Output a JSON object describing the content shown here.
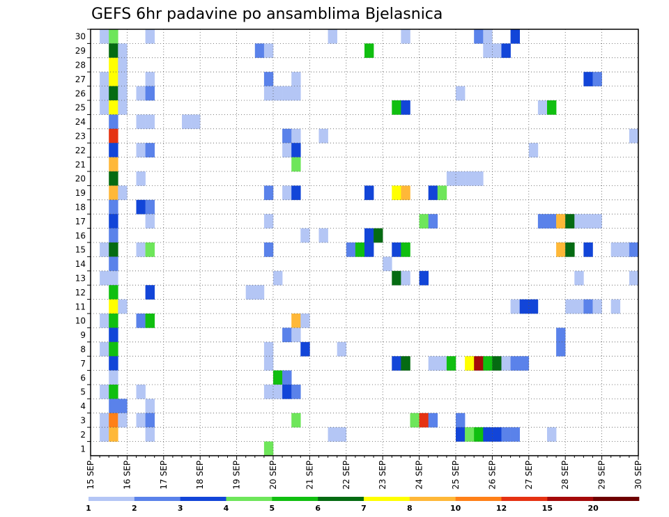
{
  "chart_data": {
    "type": "heatmap",
    "title": "GEFS 6hr padavine po ansamblima Bjelasnica",
    "x_ticks": [
      "15 SEP",
      "16 SEP",
      "17 SEP",
      "18 SEP",
      "19 SEP",
      "20 SEP",
      "21 SEP",
      "22 SEP",
      "23 SEP",
      "24 SEP",
      "25 SEP",
      "26 SEP",
      "27 SEP",
      "28 SEP",
      "29 SEP",
      "30 SEP"
    ],
    "y_ticks": [
      "1",
      "2",
      "3",
      "4",
      "5",
      "6",
      "7",
      "8",
      "9",
      "10",
      "11",
      "12",
      "13",
      "14",
      "15",
      "16",
      "17",
      "18",
      "19",
      "20",
      "21",
      "22",
      "23",
      "24",
      "25",
      "26",
      "27",
      "28",
      "29",
      "30"
    ],
    "xlim": [
      0,
      60
    ],
    "ylim": [
      0,
      30
    ],
    "x_step": "6hr",
    "grid": true,
    "legend": {
      "labels": [
        "1",
        "2",
        "3",
        "4",
        "5",
        "6",
        "7",
        "8",
        "10",
        "12",
        "15",
        "20"
      ],
      "colors": [
        "#b4c6f5",
        "#5a82ea",
        "#1245d8",
        "#6ee65a",
        "#10bf10",
        "#056b12",
        "#ffff00",
        "#ffb838",
        "#ff8018",
        "#e53212",
        "#a50a0a",
        "#6e0000"
      ],
      "placement": "bottom"
    },
    "cells": [
      [
        1,
        30,
        0
      ],
      [
        2,
        30,
        3
      ],
      [
        6,
        30,
        0
      ],
      [
        26,
        30,
        0
      ],
      [
        34,
        30,
        0
      ],
      [
        42,
        30,
        1
      ],
      [
        43,
        30,
        0
      ],
      [
        46,
        30,
        2
      ],
      [
        2,
        29,
        5
      ],
      [
        3,
        29,
        0
      ],
      [
        18,
        29,
        1
      ],
      [
        19,
        29,
        0
      ],
      [
        30,
        29,
        4
      ],
      [
        43,
        29,
        0
      ],
      [
        44,
        29,
        0
      ],
      [
        45,
        29,
        2
      ],
      [
        2,
        28,
        6
      ],
      [
        3,
        28,
        0
      ],
      [
        1,
        27,
        0
      ],
      [
        2,
        27,
        6
      ],
      [
        3,
        27,
        0
      ],
      [
        6,
        27,
        0
      ],
      [
        19,
        27,
        1
      ],
      [
        22,
        27,
        0
      ],
      [
        54,
        27,
        2
      ],
      [
        55,
        27,
        1
      ],
      [
        1,
        26,
        0
      ],
      [
        2,
        26,
        5
      ],
      [
        3,
        26,
        0
      ],
      [
        5,
        26,
        0
      ],
      [
        6,
        26,
        1
      ],
      [
        19,
        26,
        0
      ],
      [
        20,
        26,
        0
      ],
      [
        21,
        26,
        0
      ],
      [
        22,
        26,
        0
      ],
      [
        40,
        26,
        0
      ],
      [
        1,
        25,
        0
      ],
      [
        2,
        25,
        6
      ],
      [
        3,
        25,
        0
      ],
      [
        33,
        25,
        4
      ],
      [
        34,
        25,
        2
      ],
      [
        49,
        25,
        0
      ],
      [
        50,
        25,
        4
      ],
      [
        2,
        24,
        1
      ],
      [
        5,
        24,
        0
      ],
      [
        6,
        24,
        0
      ],
      [
        10,
        24,
        0
      ],
      [
        11,
        24,
        0
      ],
      [
        2,
        23,
        9
      ],
      [
        21,
        23,
        1
      ],
      [
        22,
        23,
        0
      ],
      [
        25,
        23,
        0
      ],
      [
        59,
        23,
        0
      ],
      [
        2,
        22,
        2
      ],
      [
        5,
        22,
        0
      ],
      [
        6,
        22,
        1
      ],
      [
        21,
        22,
        0
      ],
      [
        22,
        22,
        2
      ],
      [
        48,
        22,
        0
      ],
      [
        2,
        21,
        7
      ],
      [
        22,
        21,
        3
      ],
      [
        2,
        20,
        5
      ],
      [
        5,
        20,
        0
      ],
      [
        39,
        20,
        0
      ],
      [
        40,
        20,
        0
      ],
      [
        41,
        20,
        0
      ],
      [
        42,
        20,
        0
      ],
      [
        2,
        19,
        7
      ],
      [
        3,
        19,
        0
      ],
      [
        19,
        19,
        1
      ],
      [
        21,
        19,
        0
      ],
      [
        22,
        19,
        2
      ],
      [
        30,
        19,
        2
      ],
      [
        33,
        19,
        6
      ],
      [
        34,
        19,
        7
      ],
      [
        37,
        19,
        2
      ],
      [
        38,
        19,
        3
      ],
      [
        2,
        18,
        1
      ],
      [
        5,
        18,
        2
      ],
      [
        6,
        18,
        1
      ],
      [
        2,
        17,
        2
      ],
      [
        6,
        17,
        0
      ],
      [
        19,
        17,
        0
      ],
      [
        36,
        17,
        3
      ],
      [
        37,
        17,
        1
      ],
      [
        49,
        17,
        1
      ],
      [
        50,
        17,
        1
      ],
      [
        51,
        17,
        7
      ],
      [
        52,
        17,
        5
      ],
      [
        53,
        17,
        0
      ],
      [
        54,
        17,
        0
      ],
      [
        55,
        17,
        0
      ],
      [
        2,
        16,
        1
      ],
      [
        23,
        16,
        0
      ],
      [
        25,
        16,
        0
      ],
      [
        30,
        16,
        2
      ],
      [
        31,
        16,
        5
      ],
      [
        1,
        15,
        0
      ],
      [
        2,
        15,
        5
      ],
      [
        5,
        15,
        0
      ],
      [
        6,
        15,
        3
      ],
      [
        19,
        15,
        1
      ],
      [
        28,
        15,
        1
      ],
      [
        29,
        15,
        4
      ],
      [
        30,
        15,
        2
      ],
      [
        33,
        15,
        2
      ],
      [
        34,
        15,
        4
      ],
      [
        51,
        15,
        7
      ],
      [
        52,
        15,
        5
      ],
      [
        54,
        15,
        2
      ],
      [
        57,
        15,
        0
      ],
      [
        58,
        15,
        0
      ],
      [
        59,
        15,
        1
      ],
      [
        2,
        14,
        1
      ],
      [
        32,
        14,
        0
      ],
      [
        1,
        13,
        0
      ],
      [
        2,
        13,
        0
      ],
      [
        20,
        13,
        0
      ],
      [
        33,
        13,
        5
      ],
      [
        34,
        13,
        0
      ],
      [
        36,
        13,
        2
      ],
      [
        53,
        13,
        0
      ],
      [
        59,
        13,
        0
      ],
      [
        2,
        12,
        4
      ],
      [
        6,
        12,
        2
      ],
      [
        17,
        12,
        0
      ],
      [
        18,
        12,
        0
      ],
      [
        2,
        11,
        6
      ],
      [
        3,
        11,
        0
      ],
      [
        46,
        11,
        0
      ],
      [
        47,
        11,
        2
      ],
      [
        48,
        11,
        2
      ],
      [
        52,
        11,
        0
      ],
      [
        53,
        11,
        0
      ],
      [
        54,
        11,
        1
      ],
      [
        55,
        11,
        0
      ],
      [
        57,
        11,
        0
      ],
      [
        1,
        10,
        0
      ],
      [
        2,
        10,
        4
      ],
      [
        5,
        10,
        1
      ],
      [
        6,
        10,
        4
      ],
      [
        22,
        10,
        7
      ],
      [
        23,
        10,
        0
      ],
      [
        2,
        9,
        2
      ],
      [
        21,
        9,
        1
      ],
      [
        22,
        9,
        0
      ],
      [
        51,
        9,
        1
      ],
      [
        1,
        8,
        0
      ],
      [
        2,
        8,
        4
      ],
      [
        19,
        8,
        0
      ],
      [
        23,
        8,
        2
      ],
      [
        27,
        8,
        0
      ],
      [
        51,
        8,
        1
      ],
      [
        2,
        7,
        2
      ],
      [
        19,
        7,
        0
      ],
      [
        33,
        7,
        2
      ],
      [
        34,
        7,
        5
      ],
      [
        37,
        7,
        0
      ],
      [
        38,
        7,
        0
      ],
      [
        39,
        7,
        4
      ],
      [
        41,
        7,
        6
      ],
      [
        42,
        7,
        10
      ],
      [
        43,
        7,
        4
      ],
      [
        44,
        7,
        5
      ],
      [
        45,
        7,
        0
      ],
      [
        46,
        7,
        1
      ],
      [
        47,
        7,
        1
      ],
      [
        2,
        6,
        0
      ],
      [
        20,
        6,
        4
      ],
      [
        21,
        6,
        1
      ],
      [
        1,
        5,
        0
      ],
      [
        2,
        5,
        4
      ],
      [
        5,
        5,
        0
      ],
      [
        19,
        5,
        0
      ],
      [
        20,
        5,
        0
      ],
      [
        21,
        5,
        2
      ],
      [
        22,
        5,
        1
      ],
      [
        2,
        4,
        1
      ],
      [
        3,
        4,
        1
      ],
      [
        6,
        4,
        0
      ],
      [
        1,
        3,
        0
      ],
      [
        2,
        3,
        8
      ],
      [
        3,
        3,
        0
      ],
      [
        5,
        3,
        0
      ],
      [
        6,
        3,
        1
      ],
      [
        22,
        3,
        3
      ],
      [
        35,
        3,
        3
      ],
      [
        36,
        3,
        9
      ],
      [
        37,
        3,
        1
      ],
      [
        40,
        3,
        1
      ],
      [
        1,
        2,
        0
      ],
      [
        2,
        2,
        7
      ],
      [
        6,
        2,
        0
      ],
      [
        26,
        2,
        0
      ],
      [
        27,
        2,
        0
      ],
      [
        40,
        2,
        2
      ],
      [
        41,
        2,
        3
      ],
      [
        42,
        2,
        4
      ],
      [
        43,
        2,
        2
      ],
      [
        44,
        2,
        2
      ],
      [
        45,
        2,
        1
      ],
      [
        46,
        2,
        1
      ],
      [
        50,
        2,
        0
      ],
      [
        19,
        1,
        3
      ]
    ]
  }
}
